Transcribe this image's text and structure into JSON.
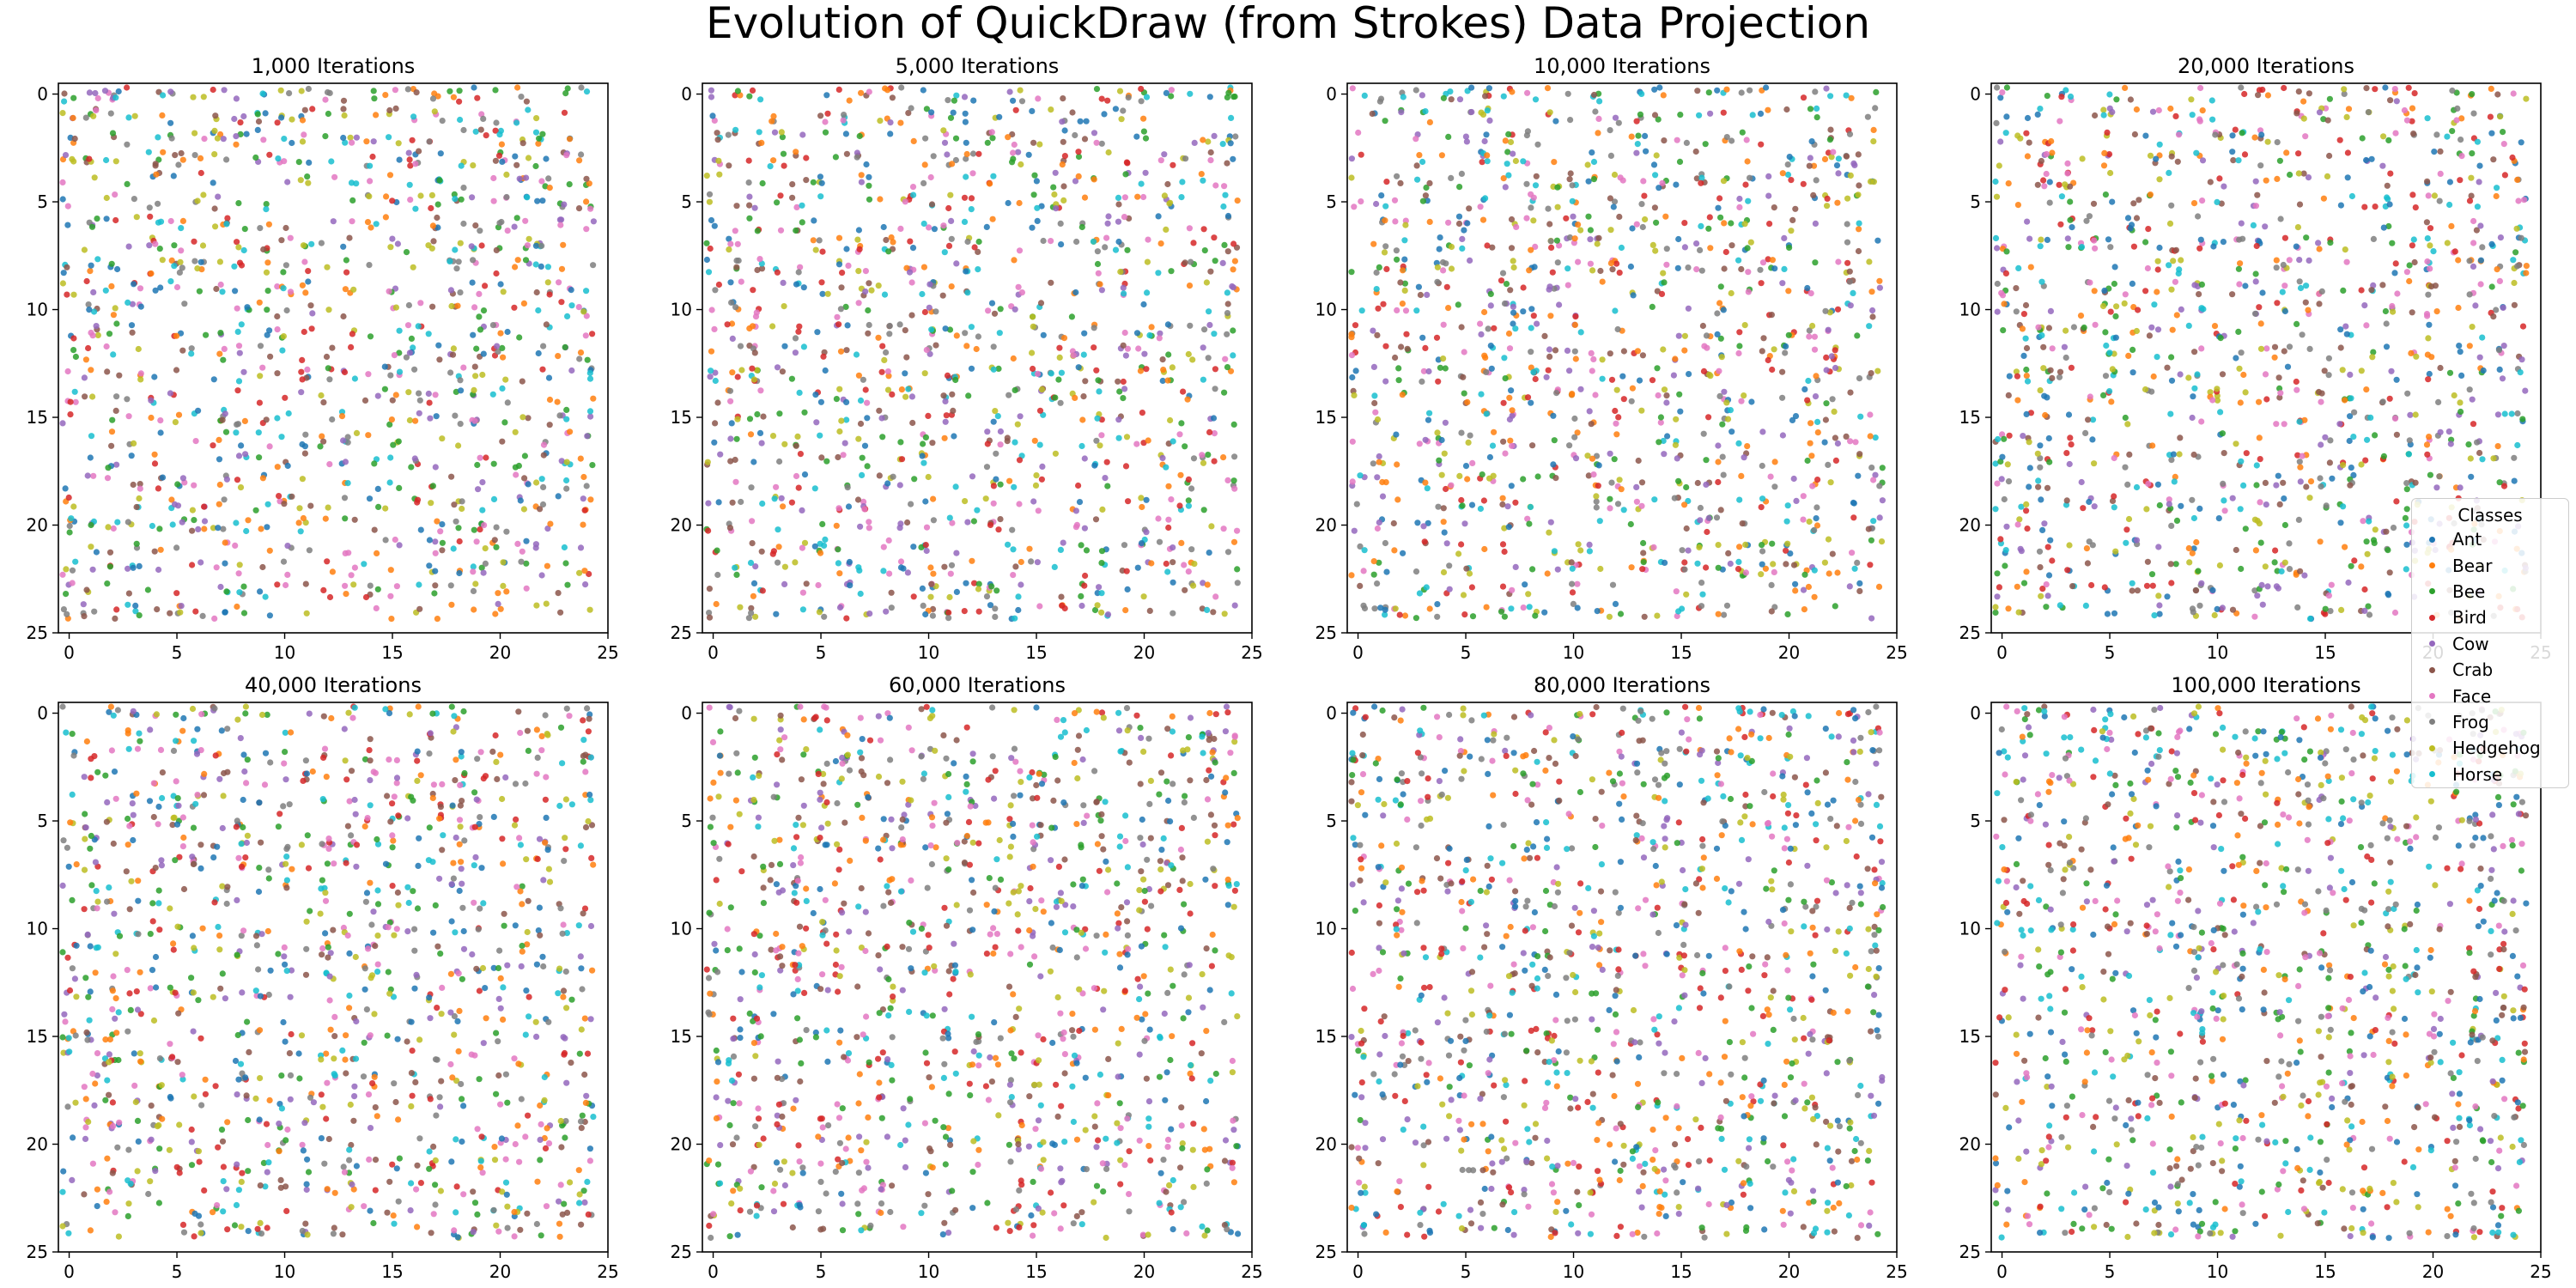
{
  "figure": {
    "title": "Evolution of QuickDraw (from Strokes) Data Projection"
  },
  "legend": {
    "title": "Classes",
    "placement": "right, between rows of the last column",
    "items": [
      {
        "label": "Ant",
        "color": "#1f77b4"
      },
      {
        "label": "Bear",
        "color": "#ff7f0e"
      },
      {
        "label": "Bee",
        "color": "#2ca02c"
      },
      {
        "label": "Bird",
        "color": "#d62728"
      },
      {
        "label": "Cow",
        "color": "#9467bd"
      },
      {
        "label": "Crab",
        "color": "#8c564b"
      },
      {
        "label": "Face",
        "color": "#e377c2"
      },
      {
        "label": "Frog",
        "color": "#7f7f7f"
      },
      {
        "label": "Hedgehog",
        "color": "#bcbd22"
      },
      {
        "label": "Horse",
        "color": "#17becf"
      }
    ]
  },
  "chart_data": [
    {
      "type": "scatter",
      "title": "1,000 Iterations",
      "xlim": [
        -0.5,
        25
      ],
      "ylim": [
        25,
        -0.5
      ],
      "y_inverted": true,
      "xticks": [
        0,
        5,
        10,
        15,
        20,
        25
      ],
      "yticks": [
        0,
        5,
        10,
        15,
        20,
        25
      ],
      "points_per_panel_approx": 1200,
      "classes": [
        "Ant",
        "Bear",
        "Bee",
        "Bird",
        "Cow",
        "Crab",
        "Face",
        "Frog",
        "Hedgehog",
        "Horse"
      ]
    },
    {
      "type": "scatter",
      "title": "5,000 Iterations",
      "xlim": [
        -0.5,
        25
      ],
      "ylim": [
        25,
        -0.5
      ],
      "y_inverted": true,
      "xticks": [
        0,
        5,
        10,
        15,
        20,
        25
      ],
      "yticks": [
        0,
        5,
        10,
        15,
        20,
        25
      ],
      "points_per_panel_approx": 1200,
      "classes": [
        "Ant",
        "Bear",
        "Bee",
        "Bird",
        "Cow",
        "Crab",
        "Face",
        "Frog",
        "Hedgehog",
        "Horse"
      ]
    },
    {
      "type": "scatter",
      "title": "10,000 Iterations",
      "xlim": [
        -0.5,
        25
      ],
      "ylim": [
        25,
        -0.5
      ],
      "y_inverted": true,
      "xticks": [
        0,
        5,
        10,
        15,
        20,
        25
      ],
      "yticks": [
        0,
        5,
        10,
        15,
        20,
        25
      ],
      "points_per_panel_approx": 1200,
      "classes": [
        "Ant",
        "Bear",
        "Bee",
        "Bird",
        "Cow",
        "Crab",
        "Face",
        "Frog",
        "Hedgehog",
        "Horse"
      ]
    },
    {
      "type": "scatter",
      "title": "20,000 Iterations",
      "xlim": [
        -0.5,
        25
      ],
      "ylim": [
        25,
        -0.5
      ],
      "y_inverted": true,
      "xticks": [
        0,
        5,
        10,
        15,
        20,
        25
      ],
      "yticks": [
        0,
        5,
        10,
        15,
        20,
        25
      ],
      "points_per_panel_approx": 1200,
      "classes": [
        "Ant",
        "Bear",
        "Bee",
        "Bird",
        "Cow",
        "Crab",
        "Face",
        "Frog",
        "Hedgehog",
        "Horse"
      ]
    },
    {
      "type": "scatter",
      "title": "40,000 Iterations",
      "xlim": [
        -0.5,
        25
      ],
      "ylim": [
        25,
        -0.5
      ],
      "y_inverted": true,
      "xticks": [
        0,
        5,
        10,
        15,
        20,
        25
      ],
      "yticks": [
        0,
        5,
        10,
        15,
        20,
        25
      ],
      "points_per_panel_approx": 1200,
      "classes": [
        "Ant",
        "Bear",
        "Bee",
        "Bird",
        "Cow",
        "Crab",
        "Face",
        "Frog",
        "Hedgehog",
        "Horse"
      ]
    },
    {
      "type": "scatter",
      "title": "60,000 Iterations",
      "xlim": [
        -0.5,
        25
      ],
      "ylim": [
        25,
        -0.5
      ],
      "y_inverted": true,
      "xticks": [
        0,
        5,
        10,
        15,
        20,
        25
      ],
      "yticks": [
        0,
        5,
        10,
        15,
        20,
        25
      ],
      "points_per_panel_approx": 1200,
      "classes": [
        "Ant",
        "Bear",
        "Bee",
        "Bird",
        "Cow",
        "Crab",
        "Face",
        "Frog",
        "Hedgehog",
        "Horse"
      ]
    },
    {
      "type": "scatter",
      "title": "80,000 Iterations",
      "xlim": [
        -0.5,
        25
      ],
      "ylim": [
        25,
        -0.5
      ],
      "y_inverted": true,
      "xticks": [
        0,
        5,
        10,
        15,
        20,
        25
      ],
      "yticks": [
        0,
        5,
        10,
        15,
        20,
        25
      ],
      "points_per_panel_approx": 1200,
      "classes": [
        "Ant",
        "Bear",
        "Bee",
        "Bird",
        "Cow",
        "Crab",
        "Face",
        "Frog",
        "Hedgehog",
        "Horse"
      ]
    },
    {
      "type": "scatter",
      "title": "100,000 Iterations",
      "xlim": [
        -0.5,
        25
      ],
      "ylim": [
        25,
        -0.5
      ],
      "y_inverted": true,
      "xticks": [
        0,
        5,
        10,
        15,
        20,
        25
      ],
      "yticks": [
        0,
        5,
        10,
        15,
        20,
        25
      ],
      "points_per_panel_approx": 1200,
      "classes": [
        "Ant",
        "Bear",
        "Bee",
        "Bird",
        "Cow",
        "Crab",
        "Face",
        "Frog",
        "Hedgehog",
        "Horse"
      ]
    }
  ]
}
